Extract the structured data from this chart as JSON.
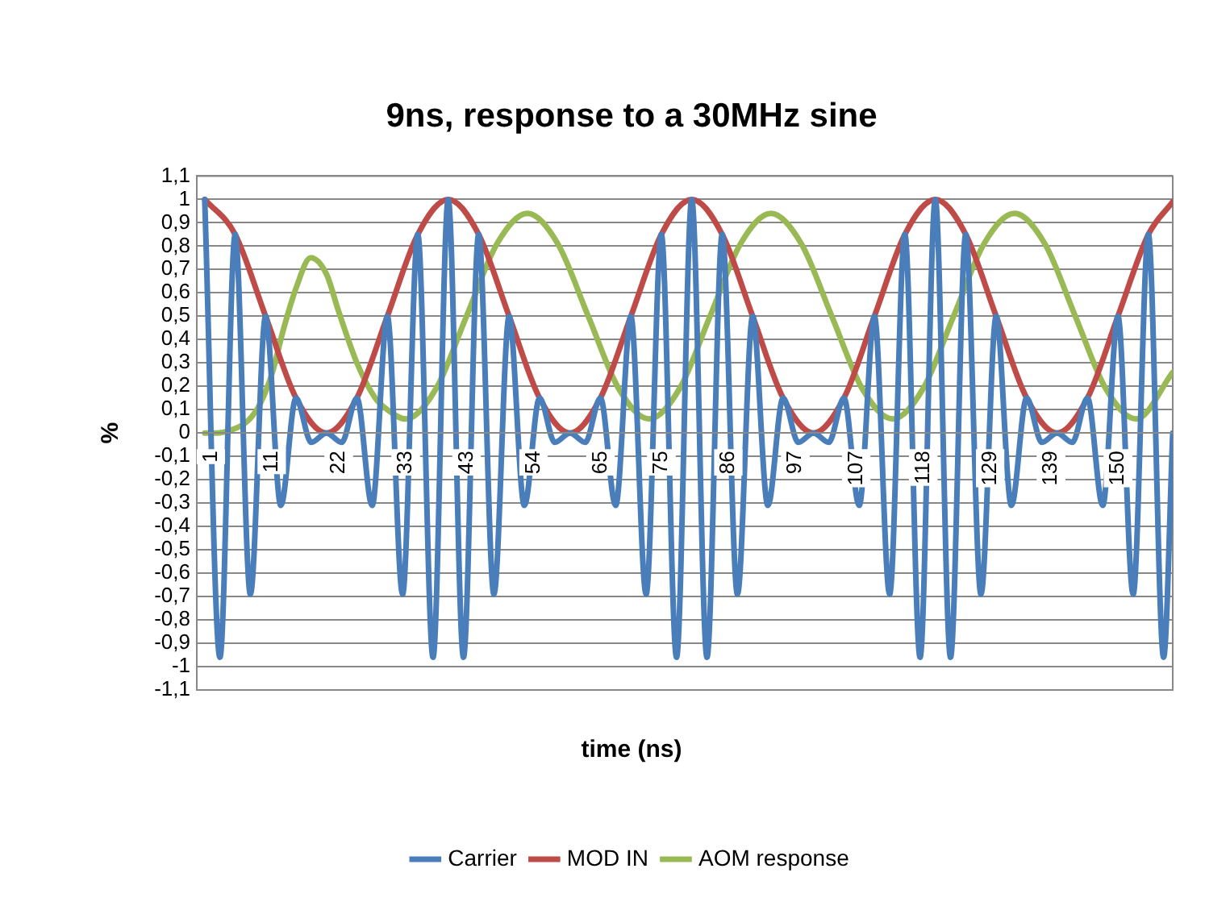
{
  "chart_data": {
    "type": "line",
    "title": "9ns, response to a 30MHz sine",
    "xlabel": "time (ns)",
    "ylabel": "%",
    "xlim": [
      -0.3,
      160
    ],
    "xticks": [
      1,
      11,
      22,
      33,
      43,
      54,
      65,
      75,
      86,
      97,
      107,
      118,
      129,
      139,
      150
    ],
    "ylim": [
      -1.1,
      1.1
    ],
    "yticks": [
      {
        "value": -1.1,
        "label": "-1,1"
      },
      -1,
      {
        "value": -0.9,
        "label": "-0,9"
      },
      {
        "value": -0.8,
        "label": "-0,8"
      },
      {
        "value": -0.7,
        "label": "-0,7"
      },
      {
        "value": -0.6,
        "label": "-0,6"
      },
      {
        "value": -0.5,
        "label": "-0,5"
      },
      {
        "value": -0.4,
        "label": "-0,4"
      },
      {
        "value": -0.3,
        "label": "-0,3"
      },
      {
        "value": -0.2,
        "label": "-0,2"
      },
      {
        "value": -0.1,
        "label": "-0,1"
      },
      0,
      {
        "value": 0.1,
        "label": "0,1"
      },
      {
        "value": 0.2,
        "label": "0,2"
      },
      {
        "value": 0.3,
        "label": "0,3"
      },
      {
        "value": 0.4,
        "label": "0,4"
      },
      {
        "value": 0.5,
        "label": "0,5"
      },
      {
        "value": 0.6,
        "label": "0,6"
      },
      {
        "value": 0.7,
        "label": "0,7"
      },
      {
        "value": 0.8,
        "label": "0,8"
      },
      {
        "value": 0.9,
        "label": "0,9"
      },
      1,
      {
        "value": 1.1,
        "label": "1,1"
      }
    ],
    "grid": "y",
    "legend": "bottom",
    "marker": "none",
    "line_style": "solid",
    "series": [
      {
        "name": "Carrier",
        "color": "#4a7ebb",
        "x": [
          1,
          3.5,
          6,
          8.5,
          11,
          13.5,
          16,
          18.5,
          21,
          23.5,
          26,
          28.5,
          31,
          33.5,
          36,
          38.5,
          41,
          43.5,
          46,
          48.5,
          51,
          53.5,
          56,
          58.5,
          61,
          63.5,
          66,
          68.5,
          71,
          73.5,
          76,
          78.5,
          81,
          83.5,
          86,
          88.5,
          91,
          93.5,
          96,
          98.5,
          101,
          103.5,
          106,
          108.5,
          111,
          113.5,
          116,
          118.5,
          121,
          123.5,
          126,
          128.5,
          131,
          133.5,
          136,
          138.5,
          141,
          143.5,
          146,
          148.5,
          151,
          153.5,
          156,
          158.5,
          160
        ],
        "values": [
          1,
          -0.96,
          0.85,
          -0.69,
          0.5,
          -0.31,
          0.15,
          -0.04,
          0,
          -0.04,
          0.15,
          -0.31,
          0.5,
          -0.69,
          0.85,
          -0.96,
          1,
          -0.96,
          0.85,
          -0.69,
          0.5,
          -0.31,
          0.15,
          -0.04,
          0,
          -0.04,
          0.15,
          -0.31,
          0.5,
          -0.69,
          0.85,
          -0.96,
          1,
          -0.96,
          0.85,
          -0.69,
          0.5,
          -0.31,
          0.15,
          -0.04,
          0,
          -0.04,
          0.15,
          -0.31,
          0.5,
          -0.69,
          0.85,
          -0.96,
          1,
          -0.96,
          0.85,
          -0.69,
          0.5,
          -0.31,
          0.15,
          -0.04,
          0,
          -0.04,
          0.15,
          -0.31,
          0.5,
          -0.69,
          0.85,
          -0.96,
          0
        ]
      },
      {
        "name": "MOD IN",
        "color": "#be4b48",
        "x": [
          1,
          6,
          11,
          16,
          21,
          26,
          31,
          36,
          41,
          46,
          51,
          56,
          61,
          66,
          71,
          76,
          81,
          86,
          91,
          96,
          101,
          106,
          111,
          116,
          121,
          126,
          131,
          136,
          141,
          146,
          151,
          156,
          160
        ],
        "values": [
          1,
          0.85,
          0.5,
          0.15,
          0,
          0.15,
          0.5,
          0.85,
          1,
          0.85,
          0.5,
          0.15,
          0,
          0.15,
          0.5,
          0.85,
          1,
          0.85,
          0.5,
          0.15,
          0,
          0.15,
          0.5,
          0.85,
          1,
          0.85,
          0.5,
          0.15,
          0,
          0.15,
          0.5,
          0.85,
          0.99
        ]
      },
      {
        "name": "AOM response",
        "color": "#98b954",
        "x": [
          1,
          3,
          5,
          8,
          10,
          12,
          14,
          16,
          18.4,
          21,
          23,
          26,
          29,
          31,
          34,
          39,
          44,
          49,
          54,
          59,
          64,
          69,
          74,
          79,
          84,
          89,
          94,
          99,
          104,
          109,
          114,
          119,
          124,
          129,
          134,
          139,
          144,
          149,
          154,
          160
        ],
        "values": [
          0,
          0,
          0.01,
          0.05,
          0.12,
          0.25,
          0.45,
          0.62,
          0.75,
          0.68,
          0.52,
          0.3,
          0.15,
          0.1,
          0.06,
          0.19,
          0.5,
          0.81,
          0.94,
          0.81,
          0.5,
          0.19,
          0.06,
          0.19,
          0.5,
          0.81,
          0.94,
          0.81,
          0.5,
          0.19,
          0.06,
          0.19,
          0.5,
          0.81,
          0.94,
          0.81,
          0.5,
          0.19,
          0.06,
          0.26
        ]
      }
    ]
  }
}
